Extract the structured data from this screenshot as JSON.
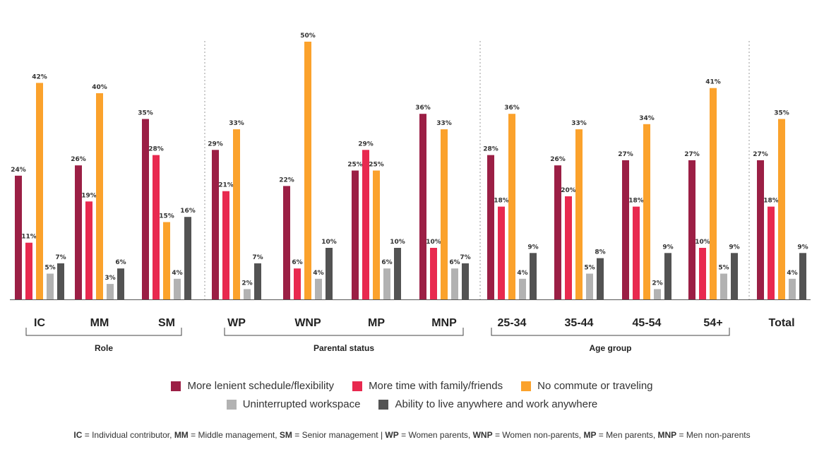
{
  "chart_data": {
    "type": "bar",
    "categories": [
      "IC",
      "MM",
      "SM",
      "WP",
      "WNP",
      "MP",
      "MNP",
      "25-34",
      "35-44",
      "45-54",
      "54+",
      "Total"
    ],
    "groups": [
      {
        "label": "Role",
        "categories": [
          "IC",
          "MM",
          "SM"
        ]
      },
      {
        "label": "Parental status",
        "categories": [
          "WP",
          "WNP",
          "MP",
          "MNP"
        ]
      },
      {
        "label": "Age group",
        "categories": [
          "25-34",
          "35-44",
          "45-54",
          "54+"
        ]
      },
      {
        "label": "",
        "categories": [
          "Total"
        ]
      }
    ],
    "series": [
      {
        "name": "More lenient schedule/flexibility",
        "color": "#9b1f45",
        "values": [
          24,
          26,
          35,
          29,
          22,
          25,
          36,
          28,
          26,
          27,
          27,
          27
        ]
      },
      {
        "name": "More time with family/friends",
        "color": "#e8294f",
        "values": [
          11,
          19,
          28,
          21,
          6,
          29,
          10,
          18,
          20,
          18,
          10,
          18
        ]
      },
      {
        "name": "No commute or traveling",
        "color": "#fba22c",
        "values": [
          42,
          40,
          15,
          33,
          50,
          25,
          33,
          36,
          33,
          34,
          41,
          35
        ]
      },
      {
        "name": "Uninterrupted workspace",
        "color": "#b2b2b2",
        "values": [
          5,
          3,
          4,
          2,
          4,
          6,
          6,
          4,
          5,
          2,
          5,
          4
        ]
      },
      {
        "name": "Ability to live anywhere and work anywhere",
        "color": "#535353",
        "values": [
          7,
          6,
          16,
          7,
          10,
          10,
          7,
          9,
          8,
          9,
          9,
          9
        ]
      }
    ],
    "value_suffix": "%",
    "ylim": [
      0,
      50
    ],
    "grid": false,
    "legend_position": "bottom"
  },
  "footnote": {
    "parts": [
      {
        "b": "IC",
        "t": " = Individual contributor,  "
      },
      {
        "b": "MM",
        "t": " = Middle management, "
      },
      {
        "b": "SM",
        "t": " = Senior management | "
      },
      {
        "b": "WP",
        "t": " = Women parents, "
      },
      {
        "b": "WNP",
        "t": " = Women non-parents, "
      },
      {
        "b": "MP",
        "t": " = Men parents, "
      },
      {
        "b": "MNP",
        "t": " = Men non-parents"
      }
    ]
  }
}
